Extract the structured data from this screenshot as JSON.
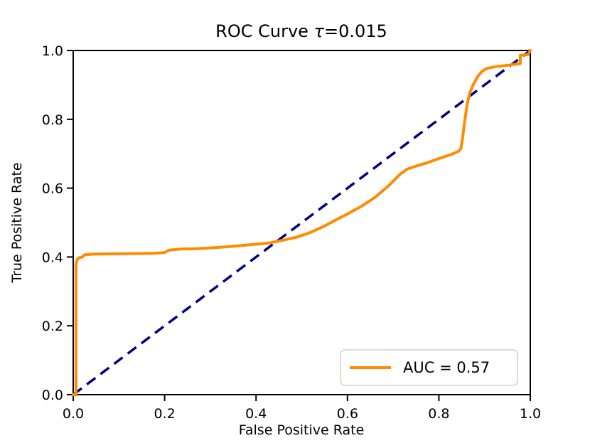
{
  "chart_data": {
    "type": "line",
    "title": "ROC Curve τ=0.015",
    "title_parts": {
      "prefix": "ROC Curve ",
      "tau": "τ",
      "rest": "=0.015"
    },
    "xlabel": "False Positive Rate",
    "ylabel": "True Positive Rate",
    "xlim": [
      0.0,
      1.0
    ],
    "ylim": [
      0.0,
      1.0
    ],
    "grid": false,
    "x_ticks": {
      "values": [
        0.0,
        0.2,
        0.4,
        0.6,
        0.8,
        1.0
      ],
      "labels": [
        "0.0",
        "0.2",
        "0.4",
        "0.6",
        "0.8",
        "1.0"
      ]
    },
    "y_ticks": {
      "values": [
        0.0,
        0.2,
        0.4,
        0.6,
        0.8,
        1.0
      ],
      "labels": [
        "0.0",
        "0.2",
        "0.4",
        "0.6",
        "0.8",
        "1.0"
      ]
    },
    "colors": {
      "roc_curve": "#FF8C00",
      "chance_line": "#000080",
      "axis": "#000000",
      "legend_border": "#d0d0d0",
      "background": "#ffffff"
    },
    "auc": 0.57,
    "tau": 0.015,
    "legend": {
      "position": "lower right",
      "entries": [
        {
          "label": "AUC = 0.57",
          "color": "#FF8C00",
          "style": "solid"
        }
      ]
    },
    "series": [
      {
        "name": "ROC curve",
        "color": "#FF8C00",
        "linewidth": 4,
        "style": "solid",
        "points": [
          [
            0.0,
            0.0
          ],
          [
            0.006,
            0.0
          ],
          [
            0.006,
            0.38
          ],
          [
            0.009,
            0.393
          ],
          [
            0.013,
            0.398
          ],
          [
            0.02,
            0.4
          ],
          [
            0.024,
            0.406
          ],
          [
            0.04,
            0.408
          ],
          [
            0.08,
            0.409
          ],
          [
            0.13,
            0.41
          ],
          [
            0.18,
            0.411
          ],
          [
            0.2,
            0.413
          ],
          [
            0.21,
            0.42
          ],
          [
            0.235,
            0.423
          ],
          [
            0.27,
            0.424
          ],
          [
            0.31,
            0.427
          ],
          [
            0.35,
            0.431
          ],
          [
            0.39,
            0.436
          ],
          [
            0.43,
            0.441
          ],
          [
            0.46,
            0.449
          ],
          [
            0.49,
            0.458
          ],
          [
            0.52,
            0.472
          ],
          [
            0.55,
            0.49
          ],
          [
            0.575,
            0.508
          ],
          [
            0.6,
            0.525
          ],
          [
            0.63,
            0.547
          ],
          [
            0.66,
            0.573
          ],
          [
            0.69,
            0.607
          ],
          [
            0.715,
            0.64
          ],
          [
            0.73,
            0.655
          ],
          [
            0.75,
            0.664
          ],
          [
            0.775,
            0.674
          ],
          [
            0.8,
            0.686
          ],
          [
            0.825,
            0.697
          ],
          [
            0.843,
            0.707
          ],
          [
            0.848,
            0.715
          ],
          [
            0.852,
            0.745
          ],
          [
            0.856,
            0.79
          ],
          [
            0.862,
            0.845
          ],
          [
            0.868,
            0.878
          ],
          [
            0.875,
            0.9
          ],
          [
            0.885,
            0.925
          ],
          [
            0.895,
            0.94
          ],
          [
            0.905,
            0.948
          ],
          [
            0.925,
            0.953
          ],
          [
            0.95,
            0.957
          ],
          [
            0.968,
            0.96
          ],
          [
            0.978,
            0.962
          ],
          [
            0.978,
            0.986
          ],
          [
            0.995,
            0.988
          ],
          [
            1.0,
            1.0
          ]
        ]
      },
      {
        "name": "chance diagonal",
        "color": "#000080",
        "linewidth": 3.5,
        "style": "dashed",
        "points": [
          [
            0.0,
            0.0
          ],
          [
            1.0,
            1.0
          ]
        ]
      }
    ]
  }
}
